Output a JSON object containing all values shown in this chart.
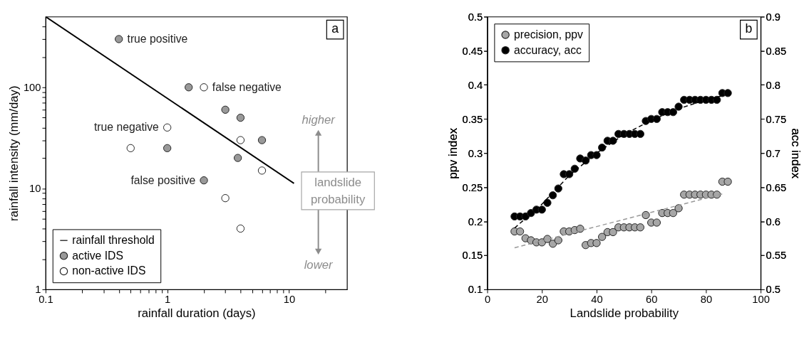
{
  "chart_data": [
    {
      "type": "scatter",
      "log": "xy",
      "xlabel": "rainfall duration (days)",
      "ylabel": "rainfall intensity (mm/day)",
      "xlim": [
        0.1,
        30
      ],
      "ylim": [
        1,
        500
      ],
      "xticks": [
        0.1,
        {
          "value": 0.2,
          "label": null
        },
        {
          "value": 0.3,
          "label": null
        },
        {
          "value": 0.4,
          "label": null
        },
        {
          "value": 0.5,
          "label": null
        },
        {
          "value": 0.6,
          "label": null
        },
        {
          "value": 0.7,
          "label": null
        },
        {
          "value": 0.8,
          "label": null
        },
        {
          "value": 0.9,
          "label": null
        },
        1,
        {
          "value": 2,
          "label": null
        },
        {
          "value": 3,
          "label": null
        },
        {
          "value": 4,
          "label": null
        },
        {
          "value": 5,
          "label": null
        },
        {
          "value": 6,
          "label": null
        },
        {
          "value": 7,
          "label": null
        },
        {
          "value": 8,
          "label": null
        },
        {
          "value": 9,
          "label": null
        },
        10,
        {
          "value": 20,
          "label": null
        }
      ],
      "yticks": [
        1,
        {
          "value": 2,
          "label": null
        },
        {
          "value": 3,
          "label": null
        },
        {
          "value": 4,
          "label": null
        },
        {
          "value": 5,
          "label": null
        },
        {
          "value": 6,
          "label": null
        },
        {
          "value": 7,
          "label": null
        },
        {
          "value": 8,
          "label": null
        },
        {
          "value": 9,
          "label": null
        },
        10,
        {
          "value": 20,
          "label": null
        },
        {
          "value": 30,
          "label": null
        },
        {
          "value": 40,
          "label": null
        },
        {
          "value": 50,
          "label": null
        },
        {
          "value": 60,
          "label": null
        },
        {
          "value": 70,
          "label": null
        },
        {
          "value": 80,
          "label": null
        },
        {
          "value": 90,
          "label": null
        },
        100,
        {
          "value": 200,
          "label": null
        },
        {
          "value": 300,
          "label": null
        },
        {
          "value": 400,
          "label": null
        }
      ],
      "legend": "bottom left",
      "series": [
        {
          "name": "rainfall threshold",
          "type": "line",
          "line_style": "solid",
          "marker": "none",
          "color": "#000000",
          "x": [
            0.1,
            11
          ],
          "values": [
            500,
            11.2
          ]
        },
        {
          "name": "active IDS",
          "marker": "circle",
          "color": "#999999",
          "x": [
            0.4,
            1.5,
            3,
            4,
            6,
            1,
            3.8,
            2
          ],
          "values": [
            300,
            100,
            60,
            50,
            30,
            25,
            20,
            12
          ]
        },
        {
          "name": "non-active IDS",
          "marker": "circle",
          "color": "#ffffff",
          "x": [
            2,
            1,
            0.5,
            4,
            6,
            3,
            4
          ],
          "values": [
            100,
            40,
            25,
            30,
            15,
            8,
            4
          ]
        }
      ],
      "annotations": [
        {
          "text": "true positive",
          "x": 0.4,
          "y": 300
        },
        {
          "text": "false negative",
          "x": 2,
          "y": 100
        },
        {
          "text": "true negative",
          "x": 1,
          "y": 40
        },
        {
          "text": "false positive",
          "x": 2,
          "y": 12
        },
        "a",
        "higher",
        "landslide probability",
        "lower"
      ]
    },
    {
      "type": "scatter",
      "xlabel": "Landslide probability",
      "ylabel": "ppv index",
      "y2label": "acc index",
      "xlim": [
        0,
        100
      ],
      "xticks": [
        0,
        20,
        40,
        60,
        80,
        100
      ],
      "ylim": [
        0.1,
        0.5
      ],
      "yticks": [
        0.1,
        0.15,
        0.2,
        0.25,
        0.3,
        0.35,
        0.4,
        0.45,
        0.5
      ],
      "y2lim": [
        0.5,
        0.9
      ],
      "y2ticks": [
        0.5,
        0.55,
        0.6,
        0.65,
        0.7,
        0.75,
        0.8,
        0.85,
        0.9
      ],
      "legend": "top left",
      "x": [
        10,
        12,
        14,
        16,
        18,
        20,
        22,
        24,
        26,
        28,
        30,
        32,
        34,
        36,
        38,
        40,
        42,
        44,
        46,
        48,
        50,
        52,
        54,
        56,
        58,
        60,
        62,
        64,
        66,
        68,
        70,
        72,
        74,
        76,
        78,
        80,
        82,
        84,
        86,
        88
      ],
      "series": [
        {
          "name": "precision, ppv",
          "marker": "circle",
          "color": "#a6a6a6",
          "values": [
            0.185,
            0.185,
            0.175,
            0.172,
            0.169,
            0.169,
            0.174,
            0.167,
            0.172,
            0.185,
            0.185,
            0.187,
            0.189,
            0.165,
            0.168,
            0.168,
            0.177,
            0.184,
            0.184,
            0.191,
            0.191,
            0.191,
            0.191,
            0.191,
            0.209,
            0.198,
            0.198,
            0.212,
            0.212,
            0.212,
            0.219,
            0.239,
            0.239,
            0.239,
            0.239,
            0.239,
            0.239,
            0.239,
            0.258,
            0.258
          ]
        },
        {
          "name": "accuracy, acc",
          "marker": "circle",
          "color": "#000000",
          "axis": "y2",
          "values": [
            0.607,
            0.607,
            0.607,
            0.612,
            0.617,
            0.617,
            0.627,
            0.638,
            0.648,
            0.669,
            0.669,
            0.677,
            0.692,
            0.689,
            0.697,
            0.697,
            0.708,
            0.718,
            0.718,
            0.728,
            0.728,
            0.728,
            0.728,
            0.728,
            0.747,
            0.75,
            0.75,
            0.76,
            0.76,
            0.76,
            0.768,
            0.778,
            0.778,
            0.778,
            0.778,
            0.778,
            0.778,
            0.778,
            0.788,
            0.788
          ]
        },
        {
          "type": "line",
          "line_style": "dashed",
          "marker": "none",
          "color": "#999999",
          "x": [
            10,
            86
          ],
          "values": [
            0.161,
            0.24
          ]
        },
        {
          "type": "line",
          "line_style": "dashed",
          "marker": "none",
          "color": "#000000",
          "axis": "y2",
          "x": [
            10,
            20,
            30,
            40,
            50,
            60,
            70,
            80,
            86
          ],
          "values": [
            0.59,
            0.625,
            0.667,
            0.7,
            0.727,
            0.748,
            0.765,
            0.778,
            0.784
          ]
        }
      ],
      "annotations": [
        "b"
      ]
    }
  ]
}
